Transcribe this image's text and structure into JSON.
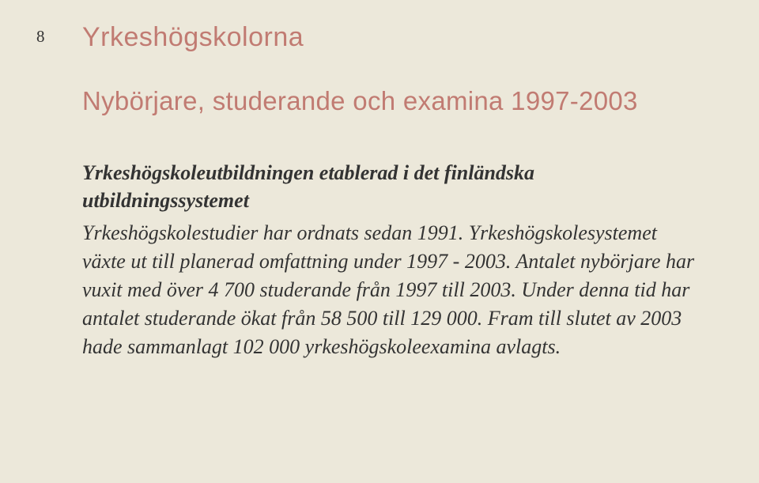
{
  "page_number": "8",
  "section_title": "Yrkeshögskolorna",
  "subtitle": "Nybörjare, studerande och examina 1997-2003",
  "heading": "Yrkeshögskoleutbildningen etablerad i det finländska utbildningssystemet",
  "body_text": "Yrkeshögskolestudier har ordnats sedan 1991. Yrkeshögskolesystemet växte ut till planerad omfattning under 1997 - 2003. Antalet nybörjare har vuxit med över 4 700 studerande från 1997 till 2003. Under denna tid har antalet studerande ökat från 58 500 till 129 000. Fram till slutet av 2003 hade sammanlagt 102 000 yrkeshögskoleexamina avlagts.",
  "colors": {
    "background": "#ece8da",
    "accent": "#c17b72",
    "text": "#333333"
  }
}
